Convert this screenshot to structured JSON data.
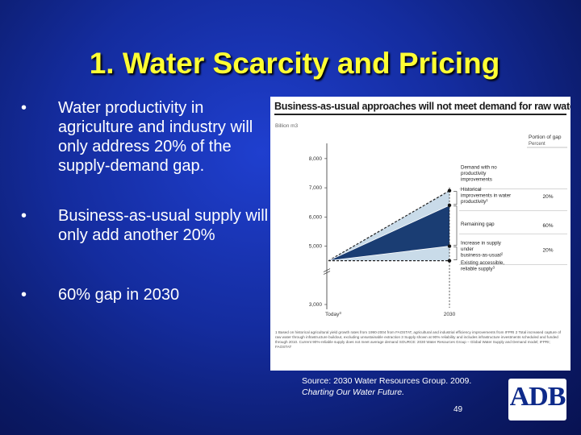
{
  "slide": {
    "title": "1. Water Scarcity and Pricing",
    "bullets": [
      "Water productivity in agriculture and industry will only address 20% of the supply-demand gap.",
      "Business-as-usual supply will only add another 20%",
      "60% gap in 2030"
    ],
    "bullet_symbol": "•",
    "source_line1": "Source: 2030 Water Resources Group. 2009.",
    "source_line2": "Charting Our Water Future.",
    "page_number": "49",
    "logo_text": "ADB"
  },
  "figure": {
    "title": "Business-as-usual approaches will not meet demand for raw water",
    "unit": "Billion m3",
    "portion_header_1": "Portion of gap",
    "portion_header_2": "Percent",
    "notes": "1 Based on historical agricultural yield growth rates from 1990-2004 from FAOSTAT, agricultural and industrial efficiency improvements from IFPRI 2 Total increased capture of raw water through infrastructure buildout, excluding unsustainable extraction 3 Supply shown at 90% reliability and includes infrastructure investments scheduled and funded through 2010. Current 90%-reliable supply does not meet average demand SOURCE: 2030 Water Resources Group – Global Water Supply and Demand model; IFPRI; FAOSTAT"
  },
  "chart_data": {
    "type": "area",
    "title": "Business-as-usual approaches will not meet demand for raw water",
    "ylabel": "Billion m3",
    "ylim": [
      3000,
      8300
    ],
    "y_ticks": [
      "8,000",
      "7,000",
      "6,000",
      "5,000",
      "3,000"
    ],
    "x_ticks": [
      "Today",
      "2030"
    ],
    "x_tick_superscripts": [
      "3",
      ""
    ],
    "colors": {
      "historical_improvements": "#c9dbe9",
      "remaining_gap": "#1a3d73",
      "supply_increase": "#c9dbe9",
      "existing_supply": "#ffffff"
    },
    "lines": [
      {
        "name": "Demand with no productivity improvements",
        "values": [
          4500,
          6900
        ]
      },
      {
        "name": "Demand with historical productivity improvements",
        "values": [
          4500,
          6400
        ]
      },
      {
        "name": "Supply with business-as-usual increase",
        "values": [
          4500,
          5000
        ]
      },
      {
        "name": "Existing accessible, reliable supply",
        "values": [
          4500,
          4500
        ]
      }
    ],
    "annotations": [
      {
        "text": "Demand with no productivity improvements",
        "percent": ""
      },
      {
        "text": "Historical improvements in water productivity",
        "superscript": "1",
        "percent": "20%"
      },
      {
        "text": "Remaining gap",
        "percent": "60%"
      },
      {
        "text": "Increase in supply under business-as-usual",
        "superscript": "2",
        "percent": "20%"
      },
      {
        "text": "Existing accessible, reliable supply",
        "superscript": "3",
        "percent": ""
      }
    ]
  }
}
